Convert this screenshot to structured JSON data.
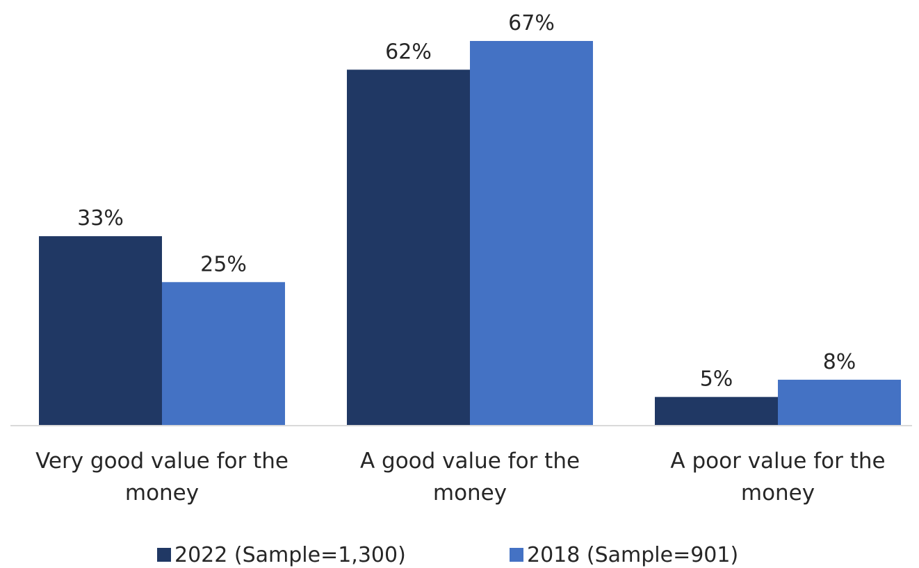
{
  "chart_data": {
    "type": "bar",
    "categories": [
      [
        "Very good value for the",
        "money"
      ],
      [
        "A good value for the",
        "money"
      ],
      [
        "A poor value for the",
        "money"
      ]
    ],
    "series": [
      {
        "name": "2022 (Sample=1,300)",
        "values": [
          33,
          62,
          5
        ],
        "labels": [
          "33%",
          "62%",
          "5%"
        ],
        "color": "#203864"
      },
      {
        "name": "2018 (Sample=901)",
        "values": [
          25,
          67,
          8
        ],
        "labels": [
          "25%",
          "67%",
          "8%"
        ],
        "color": "#4472C4"
      }
    ],
    "ylim": [
      0,
      67
    ],
    "grid": false,
    "legend_position": "bottom"
  }
}
